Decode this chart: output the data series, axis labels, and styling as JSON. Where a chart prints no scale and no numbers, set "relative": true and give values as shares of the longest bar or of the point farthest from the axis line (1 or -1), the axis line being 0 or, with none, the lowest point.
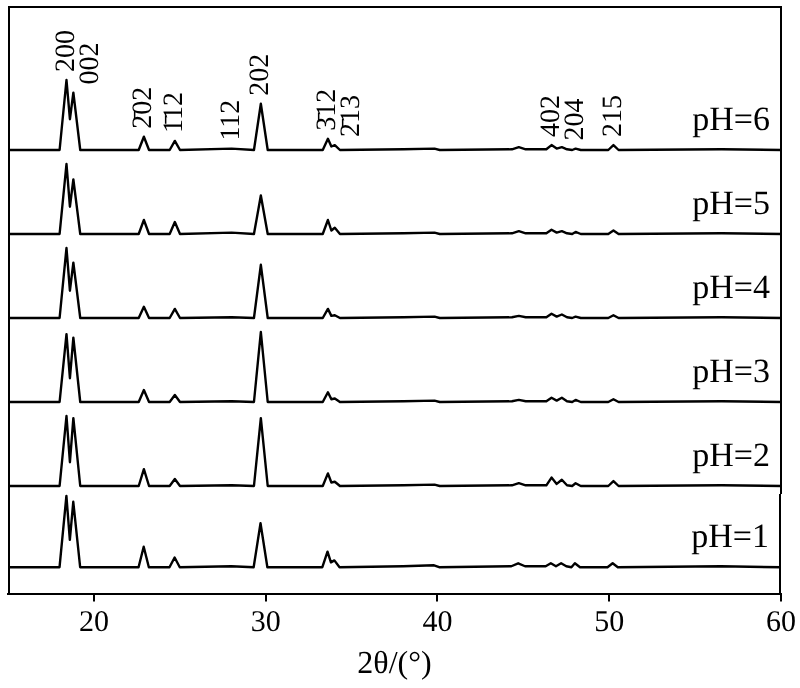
{
  "chart_data": [
    {
      "type": "line",
      "relative": true,
      "color": "#000000",
      "xlim": [
        15,
        60
      ],
      "tick_labels": false,
      "x": [
        15,
        18.0,
        18.4,
        18.6,
        18.8,
        19.2,
        22.6,
        22.9,
        23.2,
        24.4,
        24.7,
        25.0,
        28.0,
        29.3,
        29.7,
        30.1,
        33.3,
        33.6,
        33.8,
        34.0,
        34.3,
        38.0,
        39.8,
        40.1,
        44.3,
        44.7,
        45.1,
        46.3,
        46.6,
        46.9,
        47.2,
        47.5,
        47.8,
        48.0,
        48.3,
        49.9,
        50.2,
        50.5,
        56.5,
        60
      ],
      "values": [
        0,
        0,
        1,
        0.44,
        0.82,
        0,
        0,
        0.19,
        0,
        0,
        0.13,
        0,
        0.02,
        0,
        0.66,
        0,
        0,
        0.16,
        0.05,
        0.07,
        0,
        0.01,
        0.02,
        0,
        0.01,
        0.04,
        0.01,
        0.01,
        0.07,
        0.02,
        0.04,
        0.01,
        0,
        0.02,
        0,
        0,
        0.07,
        0,
        0.01,
        0
      ],
      "annotations": [
        "pH=6",
        {
          "text": "200",
          "x": 18.4,
          "y": 1
        },
        {
          "text": "002",
          "x": 18.8,
          "y": 0.82
        },
        {
          "text": "2̄02",
          "x": 22.9,
          "y": 0.19
        },
        {
          "text": "1̄12",
          "x": 24.7,
          "y": 0.13
        },
        {
          "text": "112",
          "x": 28.0,
          "y": 0.02
        },
        {
          "text": "202",
          "x": 29.7,
          "y": 0.66
        },
        {
          "text": "3̄12",
          "x": 33.6,
          "y": 0.16
        },
        {
          "text": "2̄13",
          "x": 34.0,
          "y": 0.07
        },
        {
          "text": "402",
          "x": 46.6,
          "y": 0.07
        },
        {
          "text": "204",
          "x": 48.0,
          "y": 0.02
        },
        {
          "text": "215",
          "x": 50.2,
          "y": 0.07
        }
      ]
    },
    {
      "type": "line",
      "relative": true,
      "color": "#000000",
      "xlim": [
        15,
        60
      ],
      "tick_labels": false,
      "x": [
        15,
        18.0,
        18.4,
        18.6,
        18.8,
        19.2,
        22.6,
        22.9,
        23.2,
        24.4,
        24.7,
        25.0,
        28.0,
        29.3,
        29.7,
        30.1,
        33.3,
        33.6,
        33.8,
        34.0,
        34.3,
        38.0,
        39.8,
        40.1,
        44.3,
        44.7,
        45.1,
        46.3,
        46.6,
        46.9,
        47.2,
        47.5,
        47.8,
        48.0,
        48.3,
        49.9,
        50.2,
        50.5,
        56.5,
        60
      ],
      "values": [
        0,
        0,
        1,
        0.39,
        0.78,
        0,
        0,
        0.2,
        0,
        0,
        0.17,
        0,
        0.02,
        0,
        0.55,
        0,
        0,
        0.2,
        0.05,
        0.09,
        0,
        0.01,
        0.02,
        0,
        0.01,
        0.04,
        0.01,
        0.01,
        0.06,
        0.02,
        0.04,
        0.01,
        0,
        0.03,
        0,
        0,
        0.05,
        0,
        0.01,
        0
      ],
      "annotations": [
        "pH=5"
      ]
    },
    {
      "type": "line",
      "relative": true,
      "color": "#000000",
      "xlim": [
        15,
        60
      ],
      "tick_labels": false,
      "x": [
        15,
        18.0,
        18.4,
        18.6,
        18.8,
        19.2,
        22.6,
        22.9,
        23.2,
        24.4,
        24.7,
        25.0,
        28.0,
        29.3,
        29.7,
        30.1,
        33.3,
        33.6,
        33.8,
        34.0,
        34.3,
        38.0,
        39.8,
        40.1,
        44.3,
        44.7,
        45.1,
        46.3,
        46.6,
        46.9,
        47.2,
        47.5,
        47.8,
        48.0,
        48.3,
        49.9,
        50.2,
        50.5,
        56.5,
        60
      ],
      "values": [
        0,
        0,
        1,
        0.39,
        0.79,
        0,
        0,
        0.16,
        0,
        0,
        0.13,
        0,
        0.01,
        0,
        0.76,
        0,
        0,
        0.13,
        0.03,
        0.04,
        0,
        0.01,
        0.02,
        0,
        0.01,
        0.03,
        0.01,
        0.01,
        0.06,
        0.02,
        0.05,
        0.01,
        0,
        0.02,
        0,
        0,
        0.04,
        0,
        0.01,
        0
      ],
      "annotations": [
        "pH=4"
      ]
    },
    {
      "type": "line",
      "relative": true,
      "color": "#000000",
      "xlim": [
        15,
        60
      ],
      "tick_labels": false,
      "x": [
        15,
        18.0,
        18.4,
        18.6,
        18.8,
        19.2,
        22.6,
        22.9,
        23.2,
        24.4,
        24.7,
        25.0,
        28.0,
        29.3,
        29.7,
        30.1,
        33.3,
        33.6,
        33.8,
        34.0,
        34.3,
        38.0,
        39.8,
        40.1,
        44.3,
        44.7,
        45.1,
        46.3,
        46.6,
        46.9,
        47.2,
        47.5,
        47.8,
        48.0,
        48.3,
        49.9,
        50.2,
        50.5,
        56.5,
        60
      ],
      "values": [
        0,
        0,
        0.97,
        0.34,
        0.92,
        0,
        0,
        0.17,
        0,
        0,
        0.1,
        0,
        0.01,
        0,
        1,
        0,
        0,
        0.14,
        0.04,
        0.05,
        0,
        0.01,
        0.02,
        0,
        0.01,
        0.03,
        0.01,
        0.01,
        0.06,
        0.02,
        0.06,
        0.01,
        0,
        0.03,
        0,
        0,
        0.04,
        0,
        0.01,
        0
      ],
      "annotations": [
        "pH=3"
      ]
    },
    {
      "type": "line",
      "relative": true,
      "color": "#000000",
      "xlim": [
        15,
        60
      ],
      "tick_labels": false,
      "x": [
        15,
        18.0,
        18.4,
        18.6,
        18.8,
        19.2,
        22.6,
        22.9,
        23.2,
        24.4,
        24.7,
        25.0,
        28.0,
        29.3,
        29.7,
        30.1,
        33.3,
        33.6,
        33.8,
        34.0,
        34.3,
        38.0,
        39.8,
        40.1,
        44.3,
        44.7,
        45.1,
        46.3,
        46.6,
        46.9,
        47.2,
        47.5,
        47.8,
        48.0,
        48.3,
        49.9,
        50.2,
        50.5,
        56.5,
        60
      ],
      "values": [
        0,
        0,
        1,
        0.34,
        0.97,
        0,
        0,
        0.24,
        0,
        0,
        0.1,
        0,
        0.01,
        0,
        0.97,
        0,
        0,
        0.18,
        0.05,
        0.06,
        0,
        0.01,
        0.02,
        0,
        0.01,
        0.04,
        0.01,
        0.01,
        0.12,
        0.03,
        0.09,
        0.01,
        0,
        0.04,
        0,
        0,
        0.07,
        0,
        0.01,
        0
      ],
      "annotations": [
        "pH=2"
      ]
    },
    {
      "type": "line",
      "relative": true,
      "color": "#000000",
      "xlim": [
        15,
        60
      ],
      "xticks": [
        20,
        30,
        40,
        50,
        60
      ],
      "xlabel": "2θ/(°)",
      "tick_labels": "x",
      "x": [
        15,
        18.0,
        18.4,
        18.6,
        18.8,
        19.2,
        22.6,
        22.9,
        23.2,
        24.4,
        24.7,
        25.0,
        28.0,
        29.3,
        29.7,
        30.1,
        33.3,
        33.6,
        33.8,
        34.0,
        34.3,
        38.0,
        39.8,
        40.1,
        44.3,
        44.7,
        45.1,
        46.3,
        46.6,
        46.9,
        47.2,
        47.5,
        47.8,
        48.0,
        48.3,
        49.9,
        50.2,
        50.5,
        56.5,
        60
      ],
      "values": [
        0.27,
        0.27,
        1,
        0.55,
        0.94,
        0.27,
        0.27,
        0.48,
        0.27,
        0.27,
        0.37,
        0.27,
        0.28,
        0.27,
        0.72,
        0.27,
        0.27,
        0.43,
        0.32,
        0.34,
        0.27,
        0.28,
        0.29,
        0.27,
        0.28,
        0.31,
        0.28,
        0.28,
        0.31,
        0.28,
        0.31,
        0.28,
        0.27,
        0.31,
        0.27,
        0.27,
        0.31,
        0.27,
        0.28,
        0.27
      ],
      "annotations": [
        "pH=1"
      ]
    }
  ]
}
